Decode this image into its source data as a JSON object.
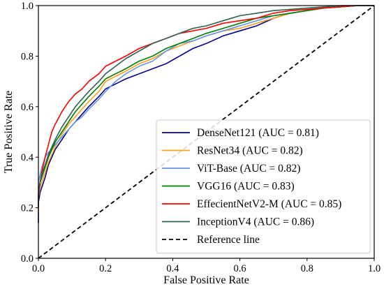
{
  "chart_data": {
    "type": "line",
    "xlabel": "False Positive Rate",
    "ylabel": "True Positive Rate",
    "xlim": [
      0.0,
      1.0
    ],
    "ylim": [
      0.0,
      1.0
    ],
    "x_ticks": [
      "0.0",
      "0.2",
      "0.4",
      "0.6",
      "0.8",
      "1.0"
    ],
    "y_ticks": [
      "0.0",
      "0.2",
      "0.4",
      "0.6",
      "0.8",
      "1.0"
    ],
    "grid": false,
    "legend_position": "lower-right",
    "series": [
      {
        "name": "DenseNet121 (AUC = 0.81)",
        "color": "#00008b",
        "points": [
          [
            0,
            0.14
          ],
          [
            0,
            0.22
          ],
          [
            0.005,
            0.26
          ],
          [
            0.01,
            0.28
          ],
          [
            0.02,
            0.32
          ],
          [
            0.03,
            0.37
          ],
          [
            0.04,
            0.4
          ],
          [
            0.05,
            0.43
          ],
          [
            0.07,
            0.47
          ],
          [
            0.09,
            0.51
          ],
          [
            0.11,
            0.54
          ],
          [
            0.13,
            0.57
          ],
          [
            0.15,
            0.6
          ],
          [
            0.18,
            0.64
          ],
          [
            0.2,
            0.67
          ],
          [
            0.23,
            0.69
          ],
          [
            0.26,
            0.71
          ],
          [
            0.3,
            0.73
          ],
          [
            0.34,
            0.75
          ],
          [
            0.38,
            0.77
          ],
          [
            0.42,
            0.8
          ],
          [
            0.46,
            0.83
          ],
          [
            0.5,
            0.85
          ],
          [
            0.55,
            0.88
          ],
          [
            0.6,
            0.9
          ],
          [
            0.65,
            0.92
          ],
          [
            0.7,
            0.95
          ],
          [
            0.75,
            0.97
          ],
          [
            0.8,
            0.98
          ],
          [
            0.85,
            0.99
          ],
          [
            0.9,
            0.995
          ],
          [
            0.95,
            1.0
          ],
          [
            1.0,
            1.0
          ]
        ]
      },
      {
        "name": "ResNet34 (AUC = 0.82)",
        "color": "#ff9e1b",
        "points": [
          [
            0,
            0.18
          ],
          [
            0,
            0.24
          ],
          [
            0.005,
            0.28
          ],
          [
            0.01,
            0.3
          ],
          [
            0.02,
            0.34
          ],
          [
            0.03,
            0.38
          ],
          [
            0.04,
            0.41
          ],
          [
            0.05,
            0.44
          ],
          [
            0.07,
            0.49
          ],
          [
            0.09,
            0.53
          ],
          [
            0.11,
            0.56
          ],
          [
            0.13,
            0.59
          ],
          [
            0.15,
            0.62
          ],
          [
            0.18,
            0.66
          ],
          [
            0.2,
            0.7
          ],
          [
            0.23,
            0.72
          ],
          [
            0.26,
            0.74
          ],
          [
            0.3,
            0.77
          ],
          [
            0.34,
            0.79
          ],
          [
            0.38,
            0.82
          ],
          [
            0.42,
            0.84
          ],
          [
            0.46,
            0.86
          ],
          [
            0.5,
            0.88
          ],
          [
            0.55,
            0.9
          ],
          [
            0.6,
            0.91
          ],
          [
            0.65,
            0.93
          ],
          [
            0.7,
            0.95
          ],
          [
            0.75,
            0.97
          ],
          [
            0.8,
            0.98
          ],
          [
            0.85,
            0.99
          ],
          [
            0.9,
            0.995
          ],
          [
            0.95,
            1.0
          ],
          [
            1.0,
            1.0
          ]
        ]
      },
      {
        "name": "ViT-Base (AUC = 0.82)",
        "color": "#6495ed",
        "points": [
          [
            0,
            0.2
          ],
          [
            0,
            0.3
          ],
          [
            0.005,
            0.33
          ],
          [
            0.01,
            0.36
          ],
          [
            0.02,
            0.4
          ],
          [
            0.03,
            0.42
          ],
          [
            0.04,
            0.43
          ],
          [
            0.05,
            0.45
          ],
          [
            0.07,
            0.48
          ],
          [
            0.09,
            0.51
          ],
          [
            0.11,
            0.54
          ],
          [
            0.13,
            0.56
          ],
          [
            0.15,
            0.59
          ],
          [
            0.18,
            0.63
          ],
          [
            0.2,
            0.66
          ],
          [
            0.23,
            0.7
          ],
          [
            0.26,
            0.73
          ],
          [
            0.3,
            0.76
          ],
          [
            0.34,
            0.78
          ],
          [
            0.38,
            0.82
          ],
          [
            0.42,
            0.85
          ],
          [
            0.46,
            0.86
          ],
          [
            0.5,
            0.88
          ],
          [
            0.55,
            0.9
          ],
          [
            0.6,
            0.92
          ],
          [
            0.65,
            0.94
          ],
          [
            0.7,
            0.96
          ],
          [
            0.75,
            0.97
          ],
          [
            0.8,
            0.98
          ],
          [
            0.85,
            0.99
          ],
          [
            0.9,
            0.995
          ],
          [
            0.95,
            1.0
          ],
          [
            1.0,
            1.0
          ]
        ]
      },
      {
        "name": "VGG16 (AUC = 0.83)",
        "color": "#008000",
        "points": [
          [
            0,
            0.2
          ],
          [
            0,
            0.26
          ],
          [
            0.005,
            0.3
          ],
          [
            0.01,
            0.32
          ],
          [
            0.02,
            0.36
          ],
          [
            0.03,
            0.4
          ],
          [
            0.04,
            0.43
          ],
          [
            0.05,
            0.46
          ],
          [
            0.07,
            0.5
          ],
          [
            0.09,
            0.54
          ],
          [
            0.11,
            0.58
          ],
          [
            0.13,
            0.61
          ],
          [
            0.15,
            0.64
          ],
          [
            0.18,
            0.68
          ],
          [
            0.2,
            0.71
          ],
          [
            0.23,
            0.73
          ],
          [
            0.26,
            0.75
          ],
          [
            0.3,
            0.78
          ],
          [
            0.34,
            0.8
          ],
          [
            0.38,
            0.83
          ],
          [
            0.42,
            0.85
          ],
          [
            0.46,
            0.87
          ],
          [
            0.5,
            0.89
          ],
          [
            0.55,
            0.91
          ],
          [
            0.6,
            0.93
          ],
          [
            0.65,
            0.95
          ],
          [
            0.7,
            0.96
          ],
          [
            0.75,
            0.97
          ],
          [
            0.8,
            0.98
          ],
          [
            0.85,
            0.99
          ],
          [
            0.9,
            0.995
          ],
          [
            0.95,
            1.0
          ],
          [
            1.0,
            1.0
          ]
        ]
      },
      {
        "name": "EffecientNetV2-M (AUC = 0.85)",
        "color": "#ff0000",
        "points": [
          [
            0,
            0.2
          ],
          [
            0,
            0.25
          ],
          [
            0.005,
            0.3
          ],
          [
            0.01,
            0.34
          ],
          [
            0.02,
            0.4
          ],
          [
            0.03,
            0.45
          ],
          [
            0.04,
            0.5
          ],
          [
            0.05,
            0.53
          ],
          [
            0.07,
            0.58
          ],
          [
            0.09,
            0.62
          ],
          [
            0.11,
            0.65
          ],
          [
            0.13,
            0.67
          ],
          [
            0.15,
            0.7
          ],
          [
            0.18,
            0.73
          ],
          [
            0.2,
            0.76
          ],
          [
            0.23,
            0.78
          ],
          [
            0.26,
            0.8
          ],
          [
            0.3,
            0.83
          ],
          [
            0.34,
            0.85
          ],
          [
            0.38,
            0.87
          ],
          [
            0.42,
            0.89
          ],
          [
            0.46,
            0.9
          ],
          [
            0.5,
            0.91
          ],
          [
            0.55,
            0.93
          ],
          [
            0.6,
            0.94
          ],
          [
            0.65,
            0.95
          ],
          [
            0.7,
            0.97
          ],
          [
            0.75,
            0.98
          ],
          [
            0.8,
            0.985
          ],
          [
            0.85,
            0.99
          ],
          [
            0.9,
            0.995
          ],
          [
            0.95,
            1.0
          ],
          [
            1.0,
            1.0
          ]
        ]
      },
      {
        "name": "InceptionV4 (AUC = 0.86)",
        "color": "#2f5f4f",
        "points": [
          [
            0,
            0.2
          ],
          [
            0,
            0.26
          ],
          [
            0.005,
            0.3
          ],
          [
            0.01,
            0.33
          ],
          [
            0.02,
            0.37
          ],
          [
            0.03,
            0.41
          ],
          [
            0.04,
            0.44
          ],
          [
            0.05,
            0.47
          ],
          [
            0.07,
            0.52
          ],
          [
            0.09,
            0.56
          ],
          [
            0.11,
            0.6
          ],
          [
            0.13,
            0.63
          ],
          [
            0.15,
            0.66
          ],
          [
            0.18,
            0.7
          ],
          [
            0.2,
            0.73
          ],
          [
            0.23,
            0.76
          ],
          [
            0.26,
            0.79
          ],
          [
            0.3,
            0.82
          ],
          [
            0.34,
            0.85
          ],
          [
            0.38,
            0.87
          ],
          [
            0.42,
            0.89
          ],
          [
            0.46,
            0.91
          ],
          [
            0.5,
            0.92
          ],
          [
            0.55,
            0.94
          ],
          [
            0.6,
            0.96
          ],
          [
            0.65,
            0.97
          ],
          [
            0.7,
            0.98
          ],
          [
            0.75,
            0.985
          ],
          [
            0.8,
            0.99
          ],
          [
            0.85,
            0.995
          ],
          [
            0.9,
            1.0
          ],
          [
            0.95,
            1.0
          ],
          [
            1.0,
            1.0
          ]
        ]
      },
      {
        "name": "Reference line",
        "color": "#000000",
        "dashed": true,
        "points": [
          [
            0,
            0
          ],
          [
            1,
            1
          ]
        ]
      }
    ]
  }
}
